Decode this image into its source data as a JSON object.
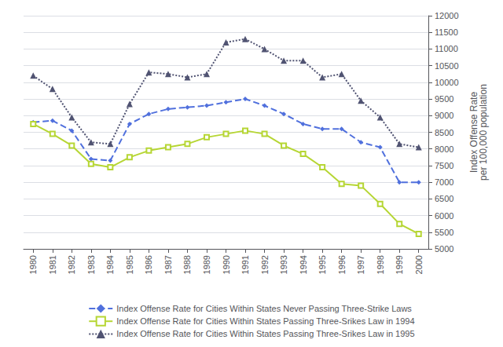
{
  "chart_data": {
    "type": "line",
    "x": [
      1980,
      1981,
      1982,
      1983,
      1984,
      1985,
      1986,
      1987,
      1988,
      1989,
      1990,
      1991,
      1992,
      1993,
      1994,
      1995,
      1996,
      1997,
      1998,
      1999,
      2000
    ],
    "xlim": [
      1979.5,
      2000.5
    ],
    "xticks": [
      1980,
      1981,
      1982,
      1983,
      1984,
      1985,
      1986,
      1987,
      1988,
      1989,
      1990,
      1991,
      1992,
      1993,
      1994,
      1995,
      1996,
      1997,
      1998,
      1999,
      2000
    ],
    "ylabel": "Index Offense Rate\nper 100,000 population",
    "ylim": [
      5000,
      12000
    ],
    "yticks": [
      5000,
      5500,
      6000,
      6500,
      7000,
      7500,
      8000,
      8500,
      9000,
      9500,
      10000,
      10500,
      11000,
      11500,
      12000
    ],
    "grid": true,
    "legend": "bottom",
    "series": [
      {
        "name": "Index Offense Rate for Cities Within States Never Passing Three-Strike Laws",
        "line_style": "dashed",
        "marker": "diamond",
        "values": [
          8800,
          8850,
          8550,
          7700,
          7650,
          8750,
          9050,
          9200,
          9250,
          9300,
          9400,
          9500,
          9300,
          9050,
          8750,
          8600,
          8600,
          8200,
          8050,
          7000,
          7000
        ]
      },
      {
        "name": "Index Offense Rate for Cities Within States Passing Three-Srikes Law in 1994",
        "line_style": "solid",
        "marker": "square",
        "values": [
          8750,
          8450,
          8100,
          7550,
          7450,
          7750,
          7950,
          8050,
          8150,
          8350,
          8450,
          8550,
          8450,
          8100,
          7850,
          7450,
          6950,
          6900,
          6350,
          5750,
          5450
        ]
      },
      {
        "name": "Index Offense Rate for Cities Within States Passing Three-Srikes Law in 1995",
        "line_style": "dotted",
        "marker": "triangle",
        "values": [
          10200,
          9800,
          8950,
          8200,
          8150,
          9350,
          10300,
          10250,
          10150,
          10250,
          11200,
          11300,
          11000,
          10650,
          10650,
          10150,
          10250,
          9450,
          8950,
          8150,
          8050
        ]
      }
    ]
  }
}
